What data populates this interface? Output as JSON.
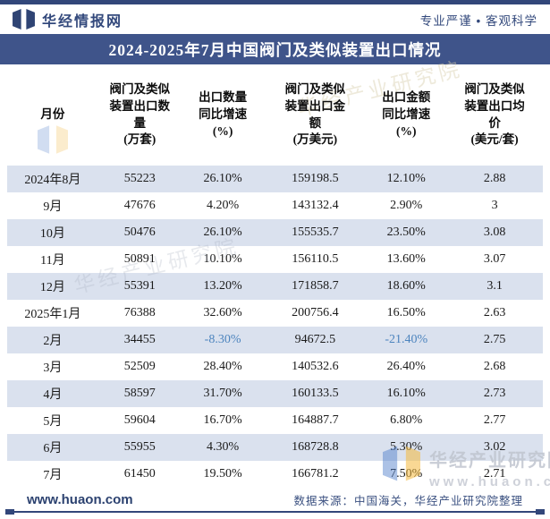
{
  "brand": {
    "name": "华经情报网",
    "slogan": "专业严谨 • 客观科学"
  },
  "title": "2024-2025年7月中国阀门及类似装置出口情况",
  "table": {
    "columns": [
      {
        "title": "月份",
        "unit": ""
      },
      {
        "title": "阀门及类似\n装置出口数\n量",
        "unit": "(万套)"
      },
      {
        "title": "出口数量\n同比增速",
        "unit": "(%)"
      },
      {
        "title": "阀门及类似\n装置出口金\n额",
        "unit": "(万美元)"
      },
      {
        "title": "出口金额\n同比增速",
        "unit": "(%)"
      },
      {
        "title": "阀门及类似\n装置出口均\n价",
        "unit": "(美元/套)"
      }
    ]
  },
  "chart_data": {
    "type": "table",
    "title": "2024-2025年7月中国阀门及类似装置出口情况",
    "columns": [
      "月份",
      "阀门及类似装置出口数量(万套)",
      "出口数量同比增速(%)",
      "阀门及类似装置出口金额(万美元)",
      "出口金额同比增速(%)",
      "阀门及类似装置出口均价(美元/套)"
    ],
    "rows": [
      [
        "2024年8月",
        "55223",
        "26.10%",
        "159198.5",
        "12.10%",
        "2.88"
      ],
      [
        "9月",
        "47676",
        "4.20%",
        "143132.4",
        "2.90%",
        "3"
      ],
      [
        "10月",
        "50476",
        "26.10%",
        "155535.7",
        "23.50%",
        "3.08"
      ],
      [
        "11月",
        "50891",
        "10.10%",
        "156110.5",
        "13.60%",
        "3.07"
      ],
      [
        "12月",
        "55391",
        "13.20%",
        "171858.7",
        "18.60%",
        "3.1"
      ],
      [
        "2025年1月",
        "76388",
        "32.60%",
        "200756.4",
        "16.50%",
        "2.63"
      ],
      [
        "2月",
        "34455",
        "-8.30%",
        "94672.5",
        "-21.40%",
        "2.75"
      ],
      [
        "3月",
        "52509",
        "28.40%",
        "140532.6",
        "26.40%",
        "2.68"
      ],
      [
        "4月",
        "58597",
        "31.70%",
        "160133.5",
        "16.10%",
        "2.73"
      ],
      [
        "5月",
        "59604",
        "16.70%",
        "164887.7",
        "6.80%",
        "2.77"
      ],
      [
        "6月",
        "55955",
        "4.30%",
        "168728.8",
        "5.30%",
        "3.02"
      ],
      [
        "7月",
        "61450",
        "19.50%",
        "166781.2",
        "7.50%",
        "2.71"
      ]
    ]
  },
  "footer": {
    "site": "www.huaon.com",
    "source": "数据来源：中国海关，华经产业研究院整理"
  },
  "watermark": {
    "org": "华经产业研究院",
    "url": "www.huaon.com"
  },
  "colors": {
    "navy": "#32477a",
    "title_bar": "#3f548a",
    "row_shade": "#dae1ee",
    "negative_value": "#4c84be",
    "watermark_blue": "#4d7cc9",
    "watermark_yellow": "#f2b83d"
  }
}
